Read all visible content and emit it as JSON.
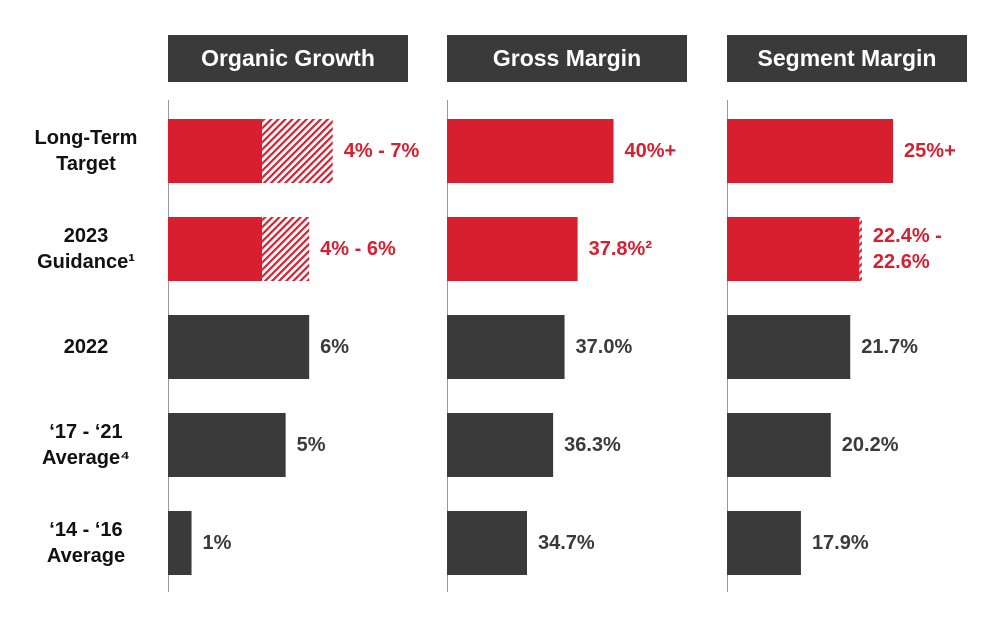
{
  "chart_data": [
    {
      "type": "bar",
      "title": "Organic Growth",
      "categories": [
        "Long-Term Target",
        "2023 Guidance¹",
        "2022",
        "‘17 - ‘21 Average⁴",
        "‘14 - ‘16 Average"
      ],
      "values": [
        4,
        4,
        6,
        5,
        1
      ],
      "upper": [
        7,
        6,
        null,
        null,
        null
      ],
      "value_labels": [
        "4% - 7%",
        "4% - 6%",
        "6%",
        "5%",
        "1%"
      ],
      "colors": [
        "#d71f30",
        "#d71f30",
        "#3a3a3a",
        "#3a3a3a",
        "#3a3a3a"
      ],
      "xlim": [
        0,
        10.2
      ]
    },
    {
      "type": "bar",
      "title": "Gross Margin",
      "values": [
        40,
        37.8,
        37.0,
        36.3,
        34.7
      ],
      "value_labels": [
        "40%+",
        "37.8%²",
        "37.0%",
        "36.3%",
        "34.7%"
      ],
      "colors": [
        "#d71f30",
        "#d71f30",
        "#3a3a3a",
        "#3a3a3a",
        "#3a3a3a"
      ],
      "xlim": [
        29.8,
        44.5
      ]
    },
    {
      "type": "bar",
      "title": "Segment Margin",
      "values": [
        25,
        22.4,
        21.7,
        20.2,
        17.9
      ],
      "upper": [
        null,
        22.6,
        null,
        null,
        null
      ],
      "value_labels": [
        "25%+",
        "22.4% - 22.6%",
        "21.7%",
        "20.2%",
        "17.9%"
      ],
      "colors": [
        "#d71f30",
        "#d71f30",
        "#3a3a3a",
        "#3a3a3a",
        "#3a3a3a"
      ],
      "xlim": [
        12.2,
        30.7
      ]
    }
  ]
}
